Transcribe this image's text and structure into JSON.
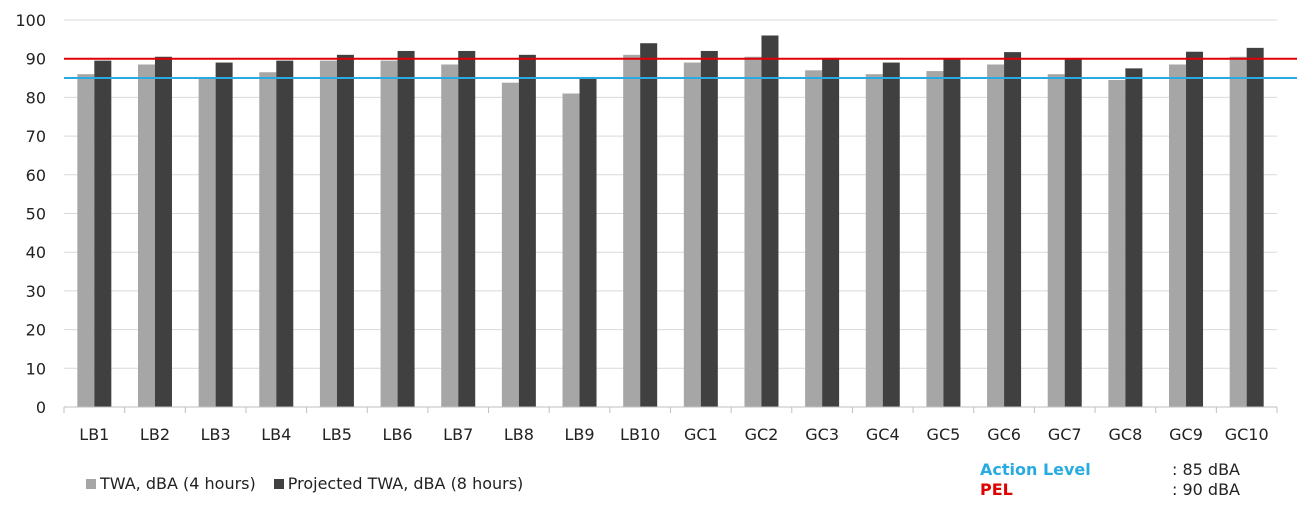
{
  "chart_data": {
    "type": "bar",
    "categories": [
      "LB1",
      "LB2",
      "LB3",
      "LB4",
      "LB5",
      "LB6",
      "LB7",
      "LB8",
      "LB9",
      "LB10",
      "GC1",
      "GC2",
      "GC3",
      "GC4",
      "GC5",
      "GC6",
      "GC7",
      "GC8",
      "GC9",
      "GC10"
    ],
    "series": [
      {
        "name": "TWA, dBA (4 hours)",
        "color": "#a6a6a6",
        "values": [
          86,
          88.5,
          85,
          86.5,
          89.5,
          89.5,
          88.5,
          83.8,
          81,
          91,
          89,
          90.5,
          87,
          86,
          86.8,
          88.5,
          86,
          84.5,
          88.5,
          90.5
        ]
      },
      {
        "name": "Projected TWA, dBA (8 hours)",
        "color": "#404040",
        "values": [
          89.5,
          90.5,
          89,
          89.5,
          91,
          92,
          92,
          91,
          84.8,
          94,
          92,
          96,
          90.2,
          89,
          90,
          91.7,
          89.8,
          87.5,
          91.8,
          92.8
        ]
      }
    ],
    "ylim": [
      0,
      100
    ],
    "yticks": [
      0,
      10,
      20,
      30,
      40,
      50,
      60,
      70,
      80,
      90,
      100
    ],
    "grid": true,
    "legend_position": "bottom-left",
    "reference_lines": [
      {
        "name": "Action Level",
        "value": 85,
        "label_value": ": 85 dBA",
        "color": "#29abe2"
      },
      {
        "name": "PEL",
        "value": 90,
        "label_value": ": 90 dBA",
        "color": "#e00000"
      }
    ]
  }
}
